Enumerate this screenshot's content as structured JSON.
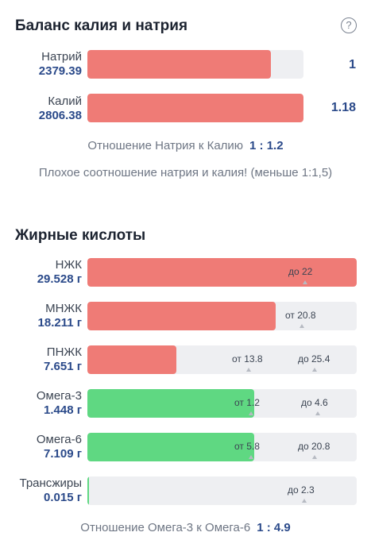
{
  "balance": {
    "title": "Баланс калия и натрия",
    "sodium": {
      "name": "Натрий",
      "value": "2379.39",
      "ratio": "1",
      "fill": 0.848
    },
    "potassium": {
      "name": "Калий",
      "value": "2806.38",
      "ratio": "1.18",
      "fill": 1.0
    },
    "ratio_label": "Отношение Натрия к Калию",
    "ratio_value": "1 : 1.2",
    "warning": "Плохое соотношение натрия и калия! (меньше 1:1,5)"
  },
  "fats": {
    "title": "Жирные кислоты",
    "rows": [
      {
        "name": "НЖК",
        "value": "29.528 г",
        "fill": 1.0,
        "color": "#ef7b76",
        "markers": [
          "до 22"
        ]
      },
      {
        "name": "МНЖК",
        "value": "18.211 г",
        "fill": 0.7,
        "color": "#ef7b76",
        "markers": [
          "от 20.8"
        ]
      },
      {
        "name": "ПНЖК",
        "value": "7.651 г",
        "fill": 0.33,
        "color": "#ef7b76",
        "markers": [
          "от 13.8",
          "до 25.4"
        ]
      },
      {
        "name": "Омега-3",
        "value": "1.448 г",
        "fill": 0.62,
        "color": "#5fd882",
        "markers": [
          "от 1.2",
          "до 4.6"
        ]
      },
      {
        "name": "Омега-6",
        "value": "7.109 г",
        "fill": 0.62,
        "color": "#5fd882",
        "markers": [
          "от 5.8",
          "до 20.8"
        ]
      },
      {
        "name": "Трансжиры",
        "value": "0.015 г",
        "fill": 0.005,
        "color": "#5fd882",
        "markers": [
          "до 2.3"
        ]
      }
    ],
    "ratio_label": "Отношение Омега-3 к Омега-6",
    "ratio_value": "1 : 4.9"
  },
  "icons": {
    "help": "help-circle-icon"
  }
}
